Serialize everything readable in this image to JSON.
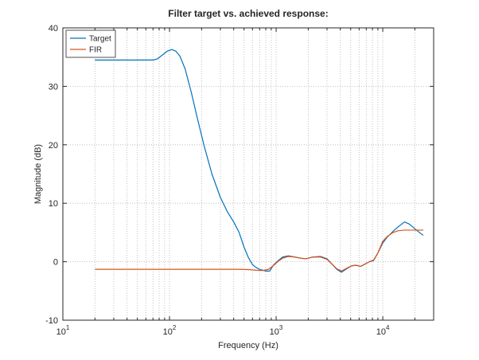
{
  "chart_data": {
    "type": "line",
    "title": "Filter target vs. achieved response:",
    "xlabel": "Frequency (Hz)",
    "ylabel": "Magnitude (dB)",
    "xscale": "log",
    "xlim": [
      10,
      30000
    ],
    "ylim": [
      -10,
      40
    ],
    "grid": true,
    "legend_position": "top-left",
    "x_ticks": [
      {
        "value": 10,
        "base": "10",
        "exp": "1"
      },
      {
        "value": 100,
        "base": "10",
        "exp": "2"
      },
      {
        "value": 1000,
        "base": "10",
        "exp": "3"
      },
      {
        "value": 10000,
        "base": "10",
        "exp": "4"
      }
    ],
    "y_ticks": [
      -10,
      0,
      10,
      20,
      30,
      40
    ],
    "series": [
      {
        "name": "Target",
        "color": "#0072bd",
        "points": [
          [
            20,
            34.5
          ],
          [
            40,
            34.5
          ],
          [
            60,
            34.5
          ],
          [
            70,
            34.5
          ],
          [
            77,
            34.7
          ],
          [
            85,
            35.3
          ],
          [
            95,
            36.0
          ],
          [
            105,
            36.3
          ],
          [
            115,
            36.0
          ],
          [
            125,
            35.2
          ],
          [
            140,
            33.0
          ],
          [
            160,
            29.0
          ],
          [
            180,
            25.0
          ],
          [
            210,
            20.0
          ],
          [
            250,
            15.0
          ],
          [
            300,
            11.0
          ],
          [
            350,
            8.5
          ],
          [
            400,
            6.8
          ],
          [
            450,
            5.0
          ],
          [
            500,
            2.5
          ],
          [
            550,
            0.7
          ],
          [
            600,
            -0.5
          ],
          [
            650,
            -1.0
          ],
          [
            700,
            -1.3
          ],
          [
            800,
            -1.6
          ],
          [
            870,
            -1.6
          ],
          [
            950,
            -0.5
          ],
          [
            1050,
            0.2
          ],
          [
            1150,
            0.8
          ],
          [
            1300,
            1.0
          ],
          [
            1500,
            0.8
          ],
          [
            1700,
            0.6
          ],
          [
            1900,
            0.5
          ],
          [
            2200,
            0.8
          ],
          [
            2600,
            0.9
          ],
          [
            3000,
            0.5
          ],
          [
            3300,
            -0.3
          ],
          [
            3700,
            -1.3
          ],
          [
            4100,
            -1.8
          ],
          [
            4600,
            -1.2
          ],
          [
            5100,
            -0.7
          ],
          [
            5600,
            -0.6
          ],
          [
            6200,
            -0.8
          ],
          [
            6800,
            -0.4
          ],
          [
            7500,
            0.0
          ],
          [
            8200,
            0.2
          ],
          [
            9000,
            1.5
          ],
          [
            10000,
            3.2
          ],
          [
            11000,
            4.2
          ],
          [
            12500,
            5.2
          ],
          [
            14000,
            6.0
          ],
          [
            16000,
            6.8
          ],
          [
            17500,
            6.5
          ],
          [
            19000,
            6.0
          ],
          [
            21000,
            5.3
          ],
          [
            24000,
            4.5
          ]
        ]
      },
      {
        "name": "FIR",
        "color": "#d95319",
        "points": [
          [
            20,
            -1.3
          ],
          [
            100,
            -1.3
          ],
          [
            300,
            -1.3
          ],
          [
            450,
            -1.3
          ],
          [
            550,
            -1.35
          ],
          [
            650,
            -1.45
          ],
          [
            750,
            -1.5
          ],
          [
            850,
            -1.3
          ],
          [
            950,
            -0.6
          ],
          [
            1050,
            0.1
          ],
          [
            1150,
            0.6
          ],
          [
            1300,
            0.9
          ],
          [
            1500,
            0.8
          ],
          [
            1700,
            0.6
          ],
          [
            1900,
            0.5
          ],
          [
            2200,
            0.8
          ],
          [
            2600,
            0.8
          ],
          [
            3000,
            0.4
          ],
          [
            3300,
            -0.3
          ],
          [
            3700,
            -1.2
          ],
          [
            4100,
            -1.6
          ],
          [
            4600,
            -1.1
          ],
          [
            5100,
            -0.7
          ],
          [
            5600,
            -0.6
          ],
          [
            6200,
            -0.8
          ],
          [
            6800,
            -0.4
          ],
          [
            7500,
            0.0
          ],
          [
            8200,
            0.3
          ],
          [
            9000,
            1.5
          ],
          [
            10000,
            3.5
          ],
          [
            11000,
            4.3
          ],
          [
            12500,
            5.0
          ],
          [
            14000,
            5.3
          ],
          [
            16000,
            5.4
          ],
          [
            20000,
            5.4
          ],
          [
            24000,
            5.4
          ]
        ]
      }
    ]
  }
}
